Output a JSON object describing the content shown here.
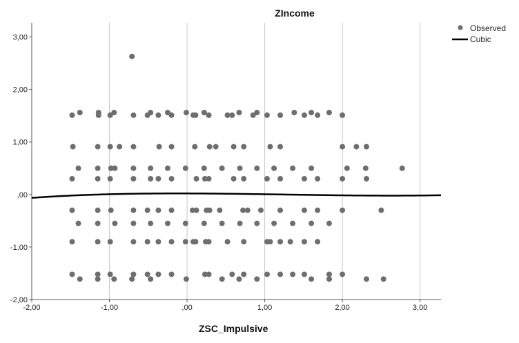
{
  "chart_data": {
    "type": "scatter",
    "title": "ZIncome",
    "xlabel": "ZSC_Impulsive",
    "ylabel": "",
    "xlim": [
      -2.0,
      3.27
    ],
    "ylim": [
      -2.0,
      3.27
    ],
    "x_ticks": [
      -2,
      -1,
      0,
      1,
      2,
      3
    ],
    "y_ticks": [
      -2,
      -1,
      0,
      1,
      2,
      3
    ],
    "x_tick_labels": [
      "-2,00",
      "-1,00",
      ",00",
      "1,00",
      "2,00",
      "3,00"
    ],
    "y_tick_labels": [
      "-2,00",
      "-1,00",
      ",00",
      "1,00",
      "2,00",
      "3,00"
    ],
    "grid": "vertical",
    "legend_position": "top-right",
    "colors": {
      "points": "#6e6e6e",
      "line": "#000000",
      "grid": "#c8c8c8",
      "axis": "#555555"
    },
    "series": [
      {
        "name": "Observed",
        "kind": "points",
        "points": [
          [
            -0.71,
            2.63
          ],
          [
            -1.48,
            1.51
          ],
          [
            -1.38,
            1.56
          ],
          [
            -1.14,
            1.51
          ],
          [
            -1.14,
            1.56
          ],
          [
            -0.99,
            1.51
          ],
          [
            -0.94,
            1.56
          ],
          [
            -0.69,
            1.51
          ],
          [
            -0.51,
            1.51
          ],
          [
            -0.47,
            1.56
          ],
          [
            -0.37,
            1.51
          ],
          [
            -0.25,
            1.56
          ],
          [
            -0.2,
            1.51
          ],
          [
            -0.01,
            1.56
          ],
          [
            0.08,
            1.51
          ],
          [
            0.11,
            1.51
          ],
          [
            0.22,
            1.56
          ],
          [
            0.28,
            1.51
          ],
          [
            0.52,
            1.51
          ],
          [
            0.58,
            1.51
          ],
          [
            0.67,
            1.56
          ],
          [
            0.85,
            1.51
          ],
          [
            0.9,
            1.56
          ],
          [
            1.03,
            1.51
          ],
          [
            1.2,
            1.51
          ],
          [
            1.38,
            1.56
          ],
          [
            1.51,
            1.51
          ],
          [
            1.6,
            1.56
          ],
          [
            1.68,
            1.51
          ],
          [
            1.83,
            1.56
          ],
          [
            2.0,
            1.51
          ],
          [
            -1.47,
            0.91
          ],
          [
            -1.15,
            0.91
          ],
          [
            -0.99,
            0.91
          ],
          [
            -0.87,
            0.91
          ],
          [
            -0.69,
            0.91
          ],
          [
            -0.36,
            0.91
          ],
          [
            -0.2,
            0.91
          ],
          [
            0.1,
            0.91
          ],
          [
            0.29,
            0.91
          ],
          [
            0.37,
            0.91
          ],
          [
            0.6,
            0.91
          ],
          [
            0.73,
            0.91
          ],
          [
            1.07,
            0.91
          ],
          [
            1.2,
            0.91
          ],
          [
            2.0,
            0.91
          ],
          [
            2.18,
            0.91
          ],
          [
            2.31,
            0.91
          ],
          [
            -1.4,
            0.5
          ],
          [
            -1.15,
            0.5
          ],
          [
            -0.98,
            0.5
          ],
          [
            -0.93,
            0.5
          ],
          [
            -0.69,
            0.5
          ],
          [
            -0.47,
            0.5
          ],
          [
            -0.25,
            0.5
          ],
          [
            -0.02,
            0.5
          ],
          [
            0.22,
            0.5
          ],
          [
            0.45,
            0.5
          ],
          [
            0.68,
            0.5
          ],
          [
            0.9,
            0.5
          ],
          [
            1.12,
            0.5
          ],
          [
            1.36,
            0.5
          ],
          [
            1.6,
            0.5
          ],
          [
            2.06,
            0.5
          ],
          [
            2.3,
            0.5
          ],
          [
            2.77,
            0.5
          ],
          [
            -1.48,
            0.3
          ],
          [
            -1.15,
            0.3
          ],
          [
            -0.99,
            0.3
          ],
          [
            -0.69,
            0.3
          ],
          [
            -0.47,
            0.3
          ],
          [
            -0.37,
            0.3
          ],
          [
            -0.2,
            0.3
          ],
          [
            0.12,
            0.3
          ],
          [
            0.23,
            0.3
          ],
          [
            0.28,
            0.3
          ],
          [
            0.6,
            0.3
          ],
          [
            0.73,
            0.3
          ],
          [
            1.03,
            0.3
          ],
          [
            1.2,
            0.3
          ],
          [
            1.51,
            0.3
          ],
          [
            1.68,
            0.3
          ],
          [
            2.0,
            0.3
          ],
          [
            2.31,
            0.3
          ],
          [
            -1.48,
            -0.3
          ],
          [
            -1.15,
            -0.3
          ],
          [
            -0.98,
            -0.3
          ],
          [
            -0.69,
            -0.3
          ],
          [
            -0.51,
            -0.3
          ],
          [
            -0.37,
            -0.3
          ],
          [
            -0.2,
            -0.3
          ],
          [
            0.07,
            -0.3
          ],
          [
            0.12,
            -0.3
          ],
          [
            0.25,
            -0.3
          ],
          [
            0.29,
            -0.3
          ],
          [
            0.42,
            -0.3
          ],
          [
            0.72,
            -0.3
          ],
          [
            0.78,
            -0.3
          ],
          [
            0.95,
            -0.3
          ],
          [
            1.2,
            -0.3
          ],
          [
            1.51,
            -0.3
          ],
          [
            1.68,
            -0.3
          ],
          [
            2.0,
            -0.3
          ],
          [
            2.5,
            -0.3
          ],
          [
            -1.4,
            -0.55
          ],
          [
            -1.15,
            -0.55
          ],
          [
            -0.93,
            -0.55
          ],
          [
            -0.69,
            -0.55
          ],
          [
            -0.47,
            -0.55
          ],
          [
            -0.25,
            -0.55
          ],
          [
            -0.02,
            -0.55
          ],
          [
            0.22,
            -0.55
          ],
          [
            0.45,
            -0.55
          ],
          [
            0.68,
            -0.55
          ],
          [
            0.9,
            -0.55
          ],
          [
            1.12,
            -0.55
          ],
          [
            1.36,
            -0.55
          ],
          [
            1.6,
            -0.55
          ],
          [
            1.83,
            -0.55
          ],
          [
            -1.48,
            -0.9
          ],
          [
            -1.15,
            -0.9
          ],
          [
            -0.99,
            -0.9
          ],
          [
            -0.69,
            -0.9
          ],
          [
            -0.51,
            -0.9
          ],
          [
            -0.37,
            -0.9
          ],
          [
            -0.2,
            -0.9
          ],
          [
            -0.02,
            -0.9
          ],
          [
            0.08,
            -0.9
          ],
          [
            0.11,
            -0.9
          ],
          [
            0.24,
            -0.9
          ],
          [
            0.28,
            -0.9
          ],
          [
            0.52,
            -0.9
          ],
          [
            0.73,
            -0.9
          ],
          [
            1.03,
            -0.9
          ],
          [
            1.07,
            -0.9
          ],
          [
            1.2,
            -0.9
          ],
          [
            1.33,
            -0.9
          ],
          [
            1.51,
            -0.9
          ],
          [
            1.68,
            -0.9
          ],
          [
            -1.48,
            -1.52
          ],
          [
            -1.38,
            -1.61
          ],
          [
            -1.15,
            -1.52
          ],
          [
            -1.15,
            -1.61
          ],
          [
            -0.99,
            -1.52
          ],
          [
            -0.94,
            -1.61
          ],
          [
            -0.71,
            -1.61
          ],
          [
            -0.69,
            -1.52
          ],
          [
            -0.51,
            -1.52
          ],
          [
            -0.47,
            -1.61
          ],
          [
            -0.37,
            -1.52
          ],
          [
            -0.2,
            -1.52
          ],
          [
            -0.01,
            -1.61
          ],
          [
            0.23,
            -1.52
          ],
          [
            0.28,
            -1.52
          ],
          [
            0.45,
            -1.61
          ],
          [
            0.58,
            -1.52
          ],
          [
            0.67,
            -1.61
          ],
          [
            0.73,
            -1.52
          ],
          [
            0.9,
            -1.61
          ],
          [
            1.03,
            -1.52
          ],
          [
            1.2,
            -1.52
          ],
          [
            1.36,
            -1.52
          ],
          [
            1.51,
            -1.52
          ],
          [
            1.6,
            -1.61
          ],
          [
            1.83,
            -1.52
          ],
          [
            1.83,
            -1.61
          ],
          [
            2.0,
            -1.52
          ],
          [
            2.31,
            -1.61
          ],
          [
            2.53,
            -1.61
          ]
        ]
      },
      {
        "name": "Cubic",
        "kind": "curve",
        "cubic_coefficients": {
          "b0": 0.02,
          "b1": -0.004,
          "b2": -0.015,
          "b3": 0.004
        }
      }
    ]
  }
}
